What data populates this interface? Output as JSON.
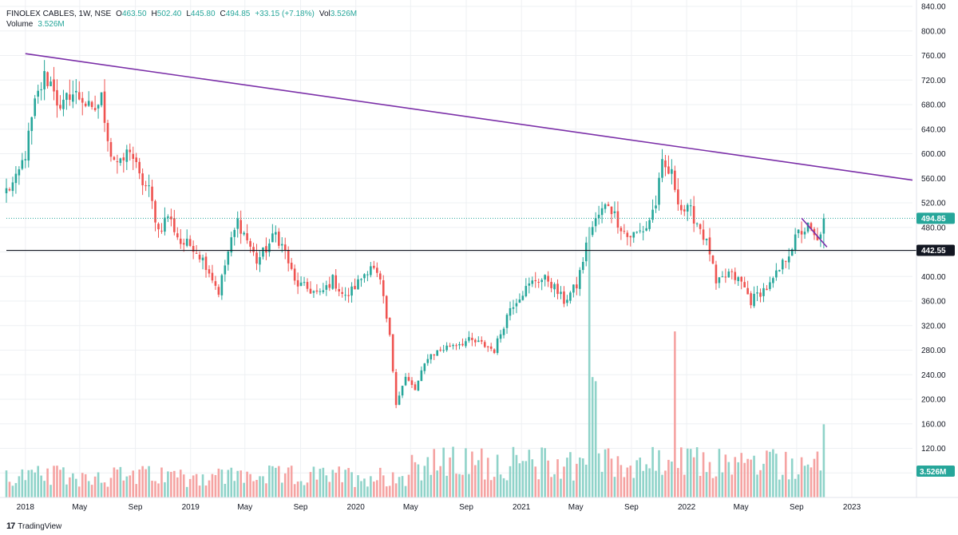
{
  "legend": {
    "symbol": "FINOLEX CABLES, 1W, NSE",
    "o_label": "O",
    "o": "463.50",
    "h_label": "H",
    "h": "502.40",
    "l_label": "L",
    "l": "445.80",
    "c_label": "C",
    "c": "494.85",
    "change": "+33.15 (+7.18%)",
    "vol_label": "Vol",
    "vol": "3.526M",
    "volume_label": "Volume",
    "volume": "3.526M"
  },
  "branding": {
    "logo": "17",
    "name": "TradingView"
  },
  "colors": {
    "up": "#26a69a",
    "down": "#ef5350",
    "up_vol": "#8fd3c9",
    "down_vol": "#f5a3a2",
    "trendline": "#7b2fa8",
    "support": "#131722",
    "grid": "#eef0f3"
  },
  "chart_data": {
    "type": "candlestick",
    "title": "FINOLEX CABLES, 1W, NSE",
    "ylim": [
      40,
      840
    ],
    "y_ticks": [
      80,
      120,
      160,
      200,
      240,
      280,
      320,
      360,
      400,
      440,
      480,
      520,
      560,
      600,
      640,
      680,
      720,
      760,
      800,
      840
    ],
    "y_tick_labels": [
      "80.00",
      "120.00",
      "160.00",
      "200.00",
      "240.00",
      "280.00",
      "320.00",
      "360.00",
      "400.00",
      "440.00",
      "480.00",
      "520.00",
      "560.00",
      "600.00",
      "640.00",
      "680.00",
      "720.00",
      "760.00",
      "800.00",
      "840.00"
    ],
    "x_range": [
      "2017-11-20",
      "2023-05-15"
    ],
    "x_ticks": [
      {
        "date": "2018-01-01",
        "label": "2018"
      },
      {
        "date": "2018-05-01",
        "label": "May"
      },
      {
        "date": "2018-09-01",
        "label": "Sep"
      },
      {
        "date": "2019-01-01",
        "label": "2019"
      },
      {
        "date": "2019-05-01",
        "label": "May"
      },
      {
        "date": "2019-09-01",
        "label": "Sep"
      },
      {
        "date": "2020-01-01",
        "label": "2020"
      },
      {
        "date": "2020-05-01",
        "label": "May"
      },
      {
        "date": "2020-09-01",
        "label": "Sep"
      },
      {
        "date": "2021-01-01",
        "label": "2021"
      },
      {
        "date": "2021-05-01",
        "label": "May"
      },
      {
        "date": "2021-09-01",
        "label": "Sep"
      },
      {
        "date": "2022-01-01",
        "label": "2022"
      },
      {
        "date": "2022-05-01",
        "label": "May"
      },
      {
        "date": "2022-09-01",
        "label": "Sep"
      },
      {
        "date": "2023-01-01",
        "label": "2023"
      }
    ],
    "price_anchors": [
      [
        "2017-11-20",
        540
      ],
      [
        "2017-12-11",
        555
      ],
      [
        "2018-01-01",
        600
      ],
      [
        "2018-01-22",
        680
      ],
      [
        "2018-02-12",
        725
      ],
      [
        "2018-03-05",
        710
      ],
      [
        "2018-03-19",
        665
      ],
      [
        "2018-04-09",
        700
      ],
      [
        "2018-05-07",
        690
      ],
      [
        "2018-05-28",
        665
      ],
      [
        "2018-06-18",
        690
      ],
      [
        "2018-07-09",
        600
      ],
      [
        "2018-07-30",
        580
      ],
      [
        "2018-08-20",
        610
      ],
      [
        "2018-09-10",
        560
      ],
      [
        "2018-10-01",
        540
      ],
      [
        "2018-10-22",
        475
      ],
      [
        "2018-11-12",
        500
      ],
      [
        "2018-12-10",
        455
      ],
      [
        "2019-01-07",
        450
      ],
      [
        "2019-02-04",
        420
      ],
      [
        "2019-03-04",
        375
      ],
      [
        "2019-03-25",
        440
      ],
      [
        "2019-04-15",
        490
      ],
      [
        "2019-05-06",
        460
      ],
      [
        "2019-05-27",
        425
      ],
      [
        "2019-06-17",
        445
      ],
      [
        "2019-07-08",
        470
      ],
      [
        "2019-07-29",
        440
      ],
      [
        "2019-08-19",
        390
      ],
      [
        "2019-09-16",
        380
      ],
      [
        "2019-10-14",
        370
      ],
      [
        "2019-11-11",
        395
      ],
      [
        "2019-12-09",
        365
      ],
      [
        "2020-01-06",
        390
      ],
      [
        "2020-02-03",
        420
      ],
      [
        "2020-02-24",
        390
      ],
      [
        "2020-03-16",
        300
      ],
      [
        "2020-03-30",
        195
      ],
      [
        "2020-04-20",
        235
      ],
      [
        "2020-05-11",
        215
      ],
      [
        "2020-06-08",
        270
      ],
      [
        "2020-07-06",
        280
      ],
      [
        "2020-08-03",
        290
      ],
      [
        "2020-09-07",
        295
      ],
      [
        "2020-10-05",
        290
      ],
      [
        "2020-11-02",
        280
      ],
      [
        "2020-12-07",
        350
      ],
      [
        "2021-01-04",
        375
      ],
      [
        "2021-02-01",
        395
      ],
      [
        "2021-03-01",
        395
      ],
      [
        "2021-04-05",
        360
      ],
      [
        "2021-05-03",
        385
      ],
      [
        "2021-05-31",
        470
      ],
      [
        "2021-06-21",
        500
      ],
      [
        "2021-07-12",
        520
      ],
      [
        "2021-08-02",
        490
      ],
      [
        "2021-08-23",
        465
      ],
      [
        "2021-09-13",
        470
      ],
      [
        "2021-10-04",
        480
      ],
      [
        "2021-10-25",
        520
      ],
      [
        "2021-11-08",
        580
      ],
      [
        "2021-11-29",
        565
      ],
      [
        "2021-12-20",
        510
      ],
      [
        "2022-01-10",
        505
      ],
      [
        "2022-01-31",
        480
      ],
      [
        "2022-02-21",
        440
      ],
      [
        "2022-03-07",
        385
      ],
      [
        "2022-04-04",
        405
      ],
      [
        "2022-05-02",
        390
      ],
      [
        "2022-05-23",
        360
      ],
      [
        "2022-06-13",
        375
      ],
      [
        "2022-07-04",
        385
      ],
      [
        "2022-07-25",
        410
      ],
      [
        "2022-08-15",
        440
      ],
      [
        "2022-09-05",
        470
      ],
      [
        "2022-09-26",
        480
      ],
      [
        "2022-10-17",
        455
      ],
      [
        "2022-10-31",
        494.85
      ]
    ],
    "volume_m_range": [
      0.5,
      3.5
    ],
    "volume_spikes_m": [
      [
        "2021-05-31",
        13.0
      ],
      [
        "2021-06-07",
        5.8
      ],
      [
        "2021-06-14",
        5.6
      ],
      [
        "2021-12-06",
        8.0
      ],
      [
        "2022-10-31",
        3.526
      ]
    ],
    "last_price": 494.85,
    "last_price_label": "494.85",
    "support_level": 442.55,
    "support_label": "442.55",
    "volume_last_label": "3.526M",
    "trendlines": [
      {
        "from": [
          "2018-01-01",
          763
        ],
        "to": [
          "2023-05-15",
          557
        ]
      },
      {
        "from": [
          "2022-09-12",
          495
        ],
        "to": [
          "2022-11-07",
          448
        ]
      }
    ],
    "grid": true
  }
}
